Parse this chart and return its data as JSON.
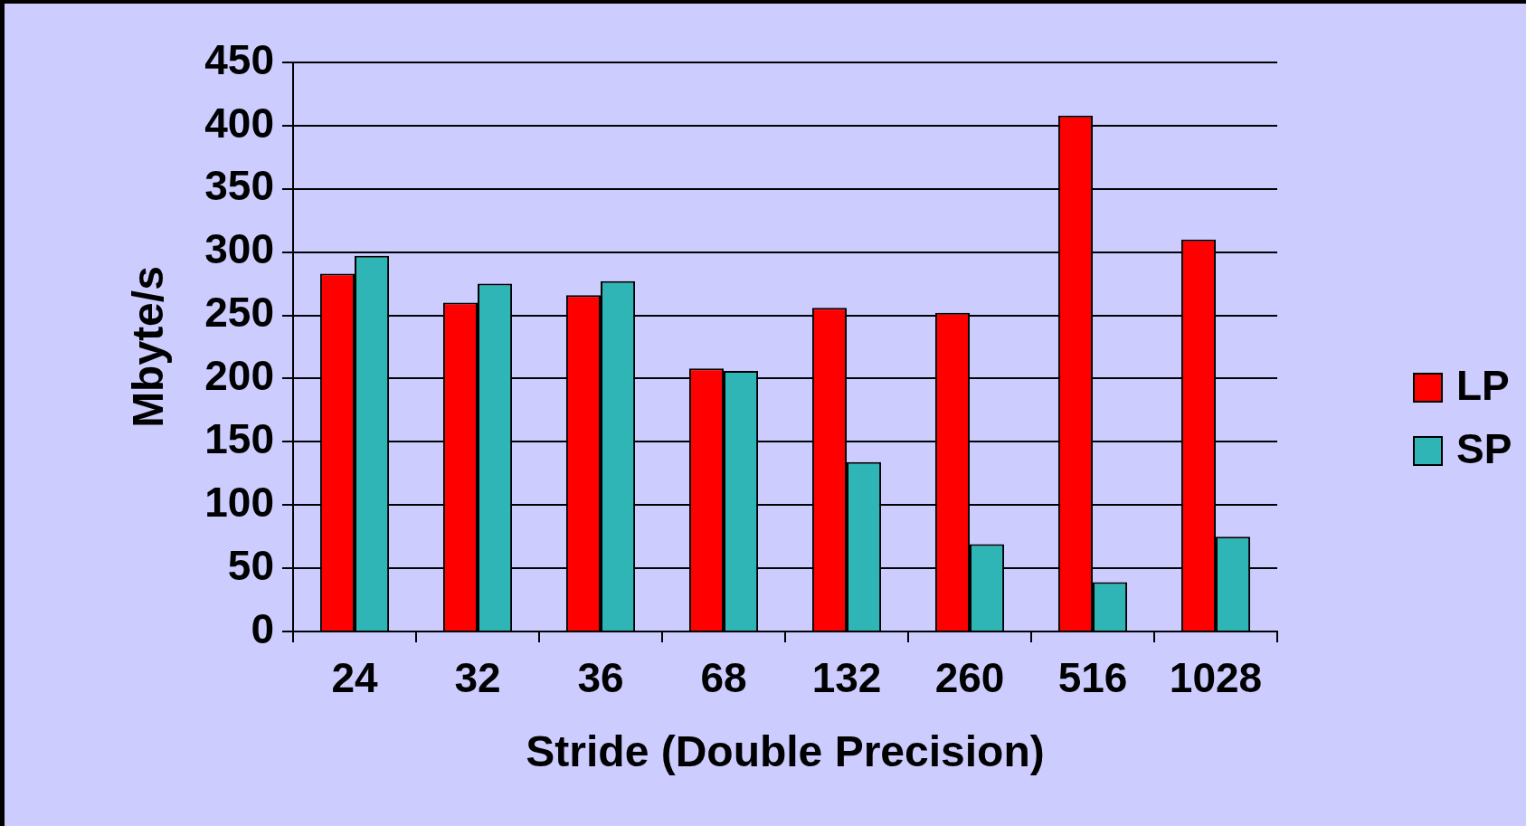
{
  "chart_data": {
    "type": "bar",
    "xlabel": "Stride (Double Precision)",
    "ylabel": "Mbyte/s",
    "categories": [
      "24",
      "32",
      "36",
      "68",
      "132",
      "260",
      "516",
      "1028"
    ],
    "series": [
      {
        "name": "LP",
        "color": "#ff0000",
        "values": [
          283,
          260,
          266,
          208,
          256,
          252,
          408,
          310
        ]
      },
      {
        "name": "SP",
        "color": "#2fb5b5",
        "values": [
          297,
          275,
          277,
          206,
          134,
          69,
          39,
          75
        ]
      }
    ],
    "ylim": [
      0,
      450
    ],
    "yticks": [
      0,
      50,
      100,
      150,
      200,
      250,
      300,
      350,
      400,
      450
    ],
    "grid": "y",
    "legend": "right"
  }
}
